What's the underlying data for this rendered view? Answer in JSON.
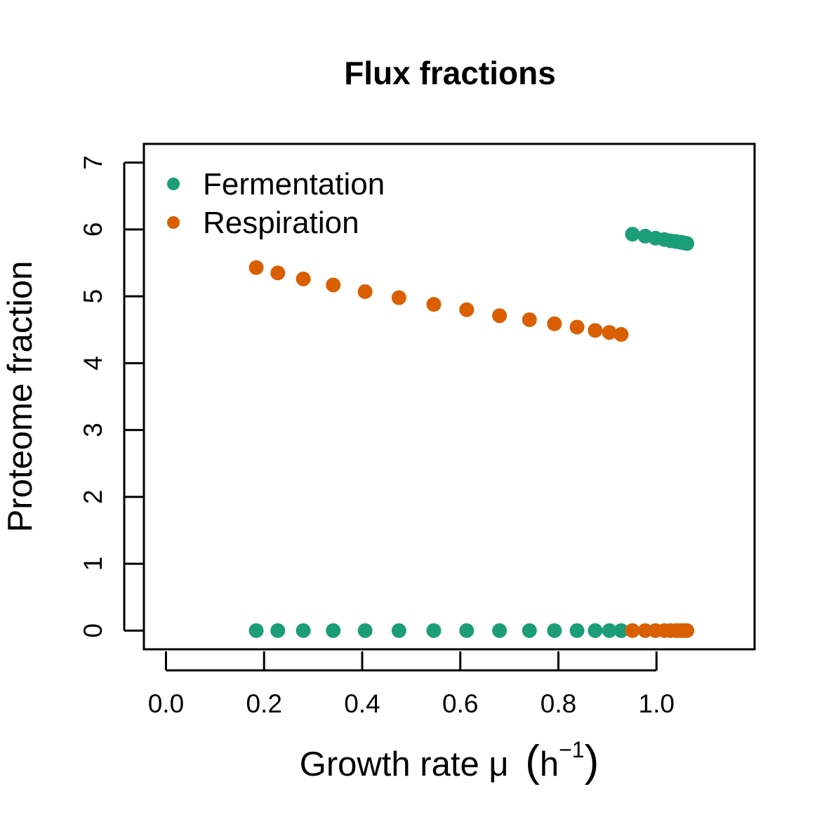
{
  "chart_data": {
    "type": "scatter",
    "title": "Flux fractions",
    "xlabel": "Growth rate μ",
    "xlabel_unit_base": "h",
    "xlabel_unit_exp": "−1",
    "ylabel": "Proteome fraction",
    "xlim": [
      -0.045,
      1.2
    ],
    "ylim": [
      -0.28,
      7.28
    ],
    "xticks": [
      0.0,
      0.2,
      0.4,
      0.6,
      0.8,
      1.0
    ],
    "xtick_labels": [
      "0.0",
      "0.2",
      "0.4",
      "0.6",
      "0.8",
      "1.0"
    ],
    "yticks": [
      0,
      1,
      2,
      3,
      4,
      5,
      6,
      7
    ],
    "ytick_labels": [
      "0",
      "1",
      "2",
      "3",
      "4",
      "5",
      "6",
      "7"
    ],
    "grid": false,
    "legend_position": "top-left",
    "series": [
      {
        "name": "Fermentation",
        "color": "#1b9e77",
        "x": [
          0.184,
          0.228,
          0.28,
          0.341,
          0.406,
          0.475,
          0.546,
          0.613,
          0.68,
          0.741,
          0.792,
          0.838,
          0.875,
          0.904,
          0.928,
          0.951,
          0.977,
          0.998,
          1.016,
          1.029,
          1.04,
          1.049,
          1.056,
          1.062
        ],
        "y": [
          0,
          0,
          0,
          0,
          0,
          0,
          0,
          0,
          0,
          0,
          0,
          0,
          0,
          0,
          0,
          5.93,
          5.9,
          5.87,
          5.85,
          5.83,
          5.82,
          5.81,
          5.8,
          5.79
        ]
      },
      {
        "name": "Respiration",
        "color": "#d95f02",
        "x": [
          0.184,
          0.228,
          0.28,
          0.341,
          0.406,
          0.475,
          0.546,
          0.613,
          0.68,
          0.741,
          0.792,
          0.838,
          0.875,
          0.904,
          0.928,
          0.951,
          0.977,
          0.998,
          1.016,
          1.029,
          1.04,
          1.049,
          1.056,
          1.062
        ],
        "y": [
          5.43,
          5.35,
          5.26,
          5.17,
          5.07,
          4.98,
          4.88,
          4.8,
          4.71,
          4.65,
          4.59,
          4.54,
          4.49,
          4.46,
          4.43,
          0,
          0,
          0,
          0,
          0,
          0,
          0,
          0,
          0
        ]
      }
    ]
  }
}
